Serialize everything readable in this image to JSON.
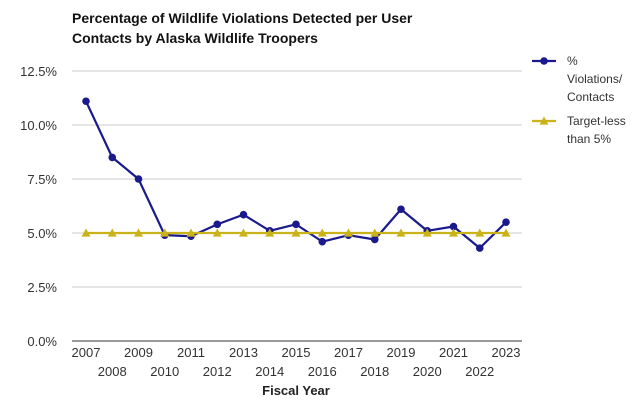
{
  "chart_data": {
    "type": "line",
    "title_lines": [
      "Percentage of Wildlife Violations Detected per User",
      "Contacts by Alaska Wildlife Troopers"
    ],
    "xlabel": "Fiscal Year",
    "ylabel": "",
    "x": [
      "2007",
      "2008",
      "2009",
      "2010",
      "2011",
      "2012",
      "2013",
      "2014",
      "2015",
      "2016",
      "2017",
      "2018",
      "2019",
      "2020",
      "2021",
      "2022",
      "2023"
    ],
    "ylim": [
      0,
      12.5
    ],
    "y_ticks": [
      "0.0%",
      "2.5%",
      "5.0%",
      "7.5%",
      "10.0%",
      "12.5%"
    ],
    "y_tick_values": [
      0,
      2.5,
      5,
      7.5,
      10,
      12.5
    ],
    "grid": true,
    "legend_position": "right",
    "series": [
      {
        "name_lines": [
          "%",
          "Violations/",
          "Contacts"
        ],
        "color": "#1a1a8c",
        "marker": "circle",
        "values": [
          11.1,
          8.5,
          7.5,
          4.9,
          4.85,
          5.4,
          5.85,
          5.1,
          5.4,
          4.6,
          4.9,
          4.7,
          6.1,
          5.1,
          5.3,
          4.3,
          5.5
        ]
      },
      {
        "name_lines": [
          "Target-less",
          "than 5%"
        ],
        "color": "#c9b21a",
        "marker": "triangle",
        "values": [
          5,
          5,
          5,
          5,
          5,
          5,
          5,
          5,
          5,
          5,
          5,
          5,
          5,
          5,
          5,
          5,
          5
        ]
      }
    ]
  }
}
